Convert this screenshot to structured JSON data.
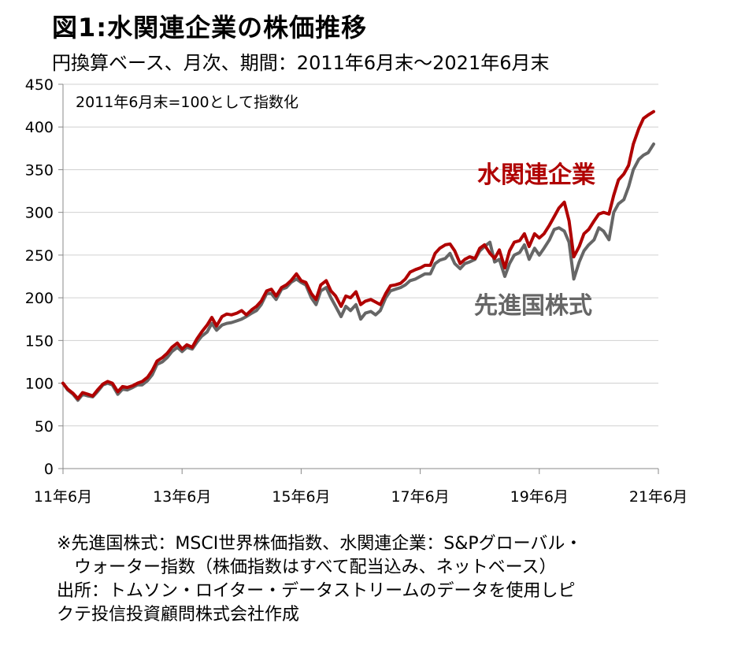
{
  "header": {
    "title": "図1:水関連企業の株価推移",
    "subtitle": "円換算ベース、月次、期間：2011年6月末～2021年6月末"
  },
  "notes": {
    "line1": "※先進国株式：MSCI世界株価指数、水関連企業：S&Pグローバル・",
    "line2": "ウォーター指数（株価指数はすべて配当込み、ネットベース）",
    "line3": "出所：トムソン・ロイター・データストリームのデータを使用しピ",
    "line4": "クテ投信投資顧問株式会社作成"
  },
  "chart_data": {
    "type": "line",
    "annotation": "2011年6月末=100として指数化",
    "xlim": [
      2011.5,
      2021.5
    ],
    "ylim": [
      0,
      450
    ],
    "y_ticks": [
      0,
      50,
      100,
      150,
      200,
      250,
      300,
      350,
      400,
      450
    ],
    "x_ticks": [
      {
        "x": 2011.5,
        "label": "11年6月"
      },
      {
        "x": 2013.5,
        "label": "13年6月"
      },
      {
        "x": 2015.5,
        "label": "15年6月"
      },
      {
        "x": 2017.5,
        "label": "17年6月"
      },
      {
        "x": 2019.5,
        "label": "19年6月"
      },
      {
        "x": 2021.5,
        "label": "21年6月"
      }
    ],
    "series": [
      {
        "name": "先進国株式",
        "color": "#666666",
        "points": [
          [
            2011.5,
            100
          ],
          [
            2011.58,
            92
          ],
          [
            2011.67,
            87
          ],
          [
            2011.75,
            80
          ],
          [
            2011.83,
            87
          ],
          [
            2011.92,
            85
          ],
          [
            2012.0,
            84
          ],
          [
            2012.08,
            90
          ],
          [
            2012.17,
            98
          ],
          [
            2012.25,
            100
          ],
          [
            2012.33,
            98
          ],
          [
            2012.42,
            87
          ],
          [
            2012.5,
            93
          ],
          [
            2012.58,
            92
          ],
          [
            2012.67,
            95
          ],
          [
            2012.75,
            98
          ],
          [
            2012.83,
            98
          ],
          [
            2012.92,
            103
          ],
          [
            2013.0,
            110
          ],
          [
            2013.08,
            122
          ],
          [
            2013.17,
            125
          ],
          [
            2013.25,
            130
          ],
          [
            2013.33,
            137
          ],
          [
            2013.42,
            142
          ],
          [
            2013.5,
            137
          ],
          [
            2013.58,
            142
          ],
          [
            2013.67,
            140
          ],
          [
            2013.75,
            148
          ],
          [
            2013.83,
            155
          ],
          [
            2013.92,
            160
          ],
          [
            2014.0,
            170
          ],
          [
            2014.08,
            162
          ],
          [
            2014.17,
            168
          ],
          [
            2014.25,
            170
          ],
          [
            2014.33,
            171
          ],
          [
            2014.42,
            173
          ],
          [
            2014.5,
            175
          ],
          [
            2014.58,
            178
          ],
          [
            2014.67,
            182
          ],
          [
            2014.75,
            185
          ],
          [
            2014.83,
            192
          ],
          [
            2014.92,
            205
          ],
          [
            2015.0,
            205
          ],
          [
            2015.08,
            198
          ],
          [
            2015.17,
            210
          ],
          [
            2015.25,
            212
          ],
          [
            2015.33,
            218
          ],
          [
            2015.42,
            222
          ],
          [
            2015.5,
            218
          ],
          [
            2015.58,
            215
          ],
          [
            2015.67,
            200
          ],
          [
            2015.75,
            192
          ],
          [
            2015.83,
            208
          ],
          [
            2015.92,
            212
          ],
          [
            2016.0,
            200
          ],
          [
            2016.08,
            190
          ],
          [
            2016.17,
            178
          ],
          [
            2016.25,
            190
          ],
          [
            2016.33,
            185
          ],
          [
            2016.42,
            192
          ],
          [
            2016.5,
            175
          ],
          [
            2016.58,
            182
          ],
          [
            2016.67,
            184
          ],
          [
            2016.75,
            180
          ],
          [
            2016.83,
            185
          ],
          [
            2016.92,
            200
          ],
          [
            2017.0,
            208
          ],
          [
            2017.08,
            210
          ],
          [
            2017.17,
            212
          ],
          [
            2017.25,
            215
          ],
          [
            2017.33,
            220
          ],
          [
            2017.42,
            222
          ],
          [
            2017.5,
            225
          ],
          [
            2017.58,
            228
          ],
          [
            2017.67,
            228
          ],
          [
            2017.75,
            240
          ],
          [
            2017.83,
            244
          ],
          [
            2017.92,
            246
          ],
          [
            2018.0,
            252
          ],
          [
            2018.08,
            240
          ],
          [
            2018.17,
            234
          ],
          [
            2018.25,
            240
          ],
          [
            2018.33,
            242
          ],
          [
            2018.42,
            245
          ],
          [
            2018.5,
            255
          ],
          [
            2018.58,
            260
          ],
          [
            2018.67,
            265
          ],
          [
            2018.75,
            242
          ],
          [
            2018.83,
            245
          ],
          [
            2018.92,
            225
          ],
          [
            2019.0,
            240
          ],
          [
            2019.08,
            250
          ],
          [
            2019.17,
            253
          ],
          [
            2019.25,
            262
          ],
          [
            2019.33,
            245
          ],
          [
            2019.42,
            258
          ],
          [
            2019.5,
            250
          ],
          [
            2019.58,
            258
          ],
          [
            2019.67,
            268
          ],
          [
            2019.75,
            280
          ],
          [
            2019.83,
            282
          ],
          [
            2019.92,
            278
          ],
          [
            2020.0,
            265
          ],
          [
            2020.08,
            222
          ],
          [
            2020.17,
            242
          ],
          [
            2020.25,
            255
          ],
          [
            2020.33,
            262
          ],
          [
            2020.42,
            268
          ],
          [
            2020.5,
            282
          ],
          [
            2020.58,
            278
          ],
          [
            2020.67,
            268
          ],
          [
            2020.75,
            300
          ],
          [
            2020.83,
            310
          ],
          [
            2020.92,
            315
          ],
          [
            2021.0,
            330
          ],
          [
            2021.08,
            350
          ],
          [
            2021.17,
            362
          ],
          [
            2021.25,
            367
          ],
          [
            2021.33,
            370
          ],
          [
            2021.42,
            380
          ]
        ]
      },
      {
        "name": "水関連企業",
        "color": "#b00000",
        "points": [
          [
            2011.5,
            100
          ],
          [
            2011.58,
            93
          ],
          [
            2011.67,
            88
          ],
          [
            2011.75,
            82
          ],
          [
            2011.83,
            89
          ],
          [
            2011.92,
            87
          ],
          [
            2012.0,
            85
          ],
          [
            2012.08,
            92
          ],
          [
            2012.17,
            99
          ],
          [
            2012.25,
            102
          ],
          [
            2012.33,
            100
          ],
          [
            2012.42,
            90
          ],
          [
            2012.5,
            96
          ],
          [
            2012.58,
            95
          ],
          [
            2012.67,
            97
          ],
          [
            2012.75,
            100
          ],
          [
            2012.83,
            102
          ],
          [
            2012.92,
            107
          ],
          [
            2013.0,
            115
          ],
          [
            2013.08,
            126
          ],
          [
            2013.17,
            130
          ],
          [
            2013.25,
            135
          ],
          [
            2013.33,
            142
          ],
          [
            2013.42,
            147
          ],
          [
            2013.5,
            140
          ],
          [
            2013.58,
            145
          ],
          [
            2013.67,
            142
          ],
          [
            2013.75,
            152
          ],
          [
            2013.83,
            160
          ],
          [
            2013.92,
            168
          ],
          [
            2014.0,
            177
          ],
          [
            2014.08,
            167
          ],
          [
            2014.17,
            178
          ],
          [
            2014.25,
            181
          ],
          [
            2014.33,
            180
          ],
          [
            2014.42,
            182
          ],
          [
            2014.5,
            185
          ],
          [
            2014.58,
            180
          ],
          [
            2014.67,
            186
          ],
          [
            2014.75,
            190
          ],
          [
            2014.83,
            196
          ],
          [
            2014.92,
            208
          ],
          [
            2015.0,
            210
          ],
          [
            2015.08,
            202
          ],
          [
            2015.17,
            212
          ],
          [
            2015.25,
            215
          ],
          [
            2015.33,
            220
          ],
          [
            2015.42,
            228
          ],
          [
            2015.5,
            220
          ],
          [
            2015.58,
            218
          ],
          [
            2015.67,
            205
          ],
          [
            2015.75,
            198
          ],
          [
            2015.83,
            215
          ],
          [
            2015.92,
            220
          ],
          [
            2016.0,
            208
          ],
          [
            2016.08,
            202
          ],
          [
            2016.17,
            190
          ],
          [
            2016.25,
            202
          ],
          [
            2016.33,
            200
          ],
          [
            2016.42,
            207
          ],
          [
            2016.5,
            192
          ],
          [
            2016.58,
            196
          ],
          [
            2016.67,
            198
          ],
          [
            2016.75,
            195
          ],
          [
            2016.83,
            192
          ],
          [
            2016.92,
            205
          ],
          [
            2017.0,
            214
          ],
          [
            2017.08,
            215
          ],
          [
            2017.17,
            217
          ],
          [
            2017.25,
            222
          ],
          [
            2017.33,
            230
          ],
          [
            2017.42,
            233
          ],
          [
            2017.5,
            235
          ],
          [
            2017.58,
            238
          ],
          [
            2017.67,
            238
          ],
          [
            2017.75,
            252
          ],
          [
            2017.83,
            258
          ],
          [
            2017.92,
            262
          ],
          [
            2018.0,
            263
          ],
          [
            2018.08,
            255
          ],
          [
            2018.17,
            240
          ],
          [
            2018.25,
            245
          ],
          [
            2018.33,
            248
          ],
          [
            2018.42,
            246
          ],
          [
            2018.5,
            258
          ],
          [
            2018.58,
            262
          ],
          [
            2018.67,
            252
          ],
          [
            2018.75,
            246
          ],
          [
            2018.83,
            256
          ],
          [
            2018.92,
            235
          ],
          [
            2019.0,
            255
          ],
          [
            2019.08,
            265
          ],
          [
            2019.17,
            267
          ],
          [
            2019.25,
            275
          ],
          [
            2019.33,
            260
          ],
          [
            2019.42,
            275
          ],
          [
            2019.5,
            270
          ],
          [
            2019.58,
            275
          ],
          [
            2019.67,
            285
          ],
          [
            2019.75,
            295
          ],
          [
            2019.83,
            305
          ],
          [
            2019.92,
            312
          ],
          [
            2020.0,
            290
          ],
          [
            2020.08,
            248
          ],
          [
            2020.17,
            260
          ],
          [
            2020.25,
            275
          ],
          [
            2020.33,
            280
          ],
          [
            2020.42,
            290
          ],
          [
            2020.5,
            298
          ],
          [
            2020.58,
            300
          ],
          [
            2020.67,
            298
          ],
          [
            2020.75,
            320
          ],
          [
            2020.83,
            338
          ],
          [
            2020.92,
            345
          ],
          [
            2021.0,
            355
          ],
          [
            2021.08,
            380
          ],
          [
            2021.17,
            398
          ],
          [
            2021.25,
            410
          ],
          [
            2021.33,
            414
          ],
          [
            2021.42,
            418
          ]
        ]
      }
    ]
  }
}
